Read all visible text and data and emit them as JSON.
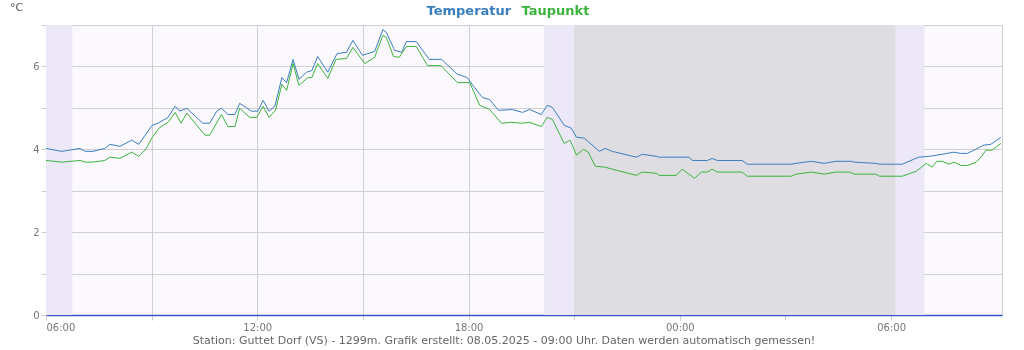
{
  "chart_data": {
    "type": "line",
    "ylabel": "°C",
    "xlim": [
      "2025-05-07T06:00",
      "2025-05-08T09:09"
    ],
    "ylim": [
      0,
      7
    ],
    "xticks": [
      {
        "value": "2025-05-07T06:00",
        "label": "06:00"
      },
      {
        "value": "2025-05-07T09:00",
        "label": null
      },
      {
        "value": "2025-05-07T12:00",
        "label": "12:00"
      },
      {
        "value": "2025-05-07T15:00",
        "label": null
      },
      {
        "value": "2025-05-07T18:00",
        "label": "18:00"
      },
      {
        "value": "2025-05-07T21:00",
        "label": null
      },
      {
        "value": "2025-05-08T00:00",
        "label": "00:00"
      },
      {
        "value": "2025-05-08T03:00",
        "label": null
      },
      {
        "value": "2025-05-08T06:00",
        "label": "06:00"
      }
    ],
    "yticks": [
      0,
      {
        "value": 1,
        "label": null
      },
      2,
      {
        "value": 3,
        "label": null
      },
      4,
      {
        "value": 5,
        "label": null
      },
      6,
      {
        "value": 7,
        "label": null
      }
    ],
    "grid": true,
    "legend": "top",
    "marker": "none",
    "line_style": "solid",
    "bands": [
      {
        "axis": "x",
        "from": "2025-05-07T06:00",
        "to": "2025-05-07T06:45",
        "label": null,
        "color": "#ece8f8"
      },
      {
        "axis": "x",
        "from": "2025-05-07T20:09",
        "to": "2025-05-07T21:00",
        "label": null,
        "color": "#ece8f8"
      },
      {
        "axis": "x",
        "from": "2025-05-07T21:00",
        "to": "2025-05-08T06:08",
        "label": null,
        "color": "#dedee2"
      },
      {
        "axis": "x",
        "from": "2025-05-08T06:08",
        "to": "2025-05-08T06:57",
        "label": null,
        "color": "#ece8f8"
      }
    ],
    "series": [
      {
        "name": "Temperatur",
        "color": "#3a7ebf",
        "x": [
          "2025-05-07T06:00",
          "2025-05-07T06:27",
          "2025-05-07T06:58",
          "2025-05-07T07:07",
          "2025-05-07T07:20",
          "2025-05-07T07:40",
          "2025-05-07T07:49",
          "2025-05-07T08:06",
          "2025-05-07T08:26",
          "2025-05-07T08:38",
          "2025-05-07T09:01",
          "2025-05-07T09:11",
          "2025-05-07T09:28",
          "2025-05-07T09:40",
          "2025-05-07T09:48",
          "2025-05-07T10:00",
          "2025-05-07T10:27",
          "2025-05-07T10:39",
          "2025-05-07T10:51",
          "2025-05-07T10:59",
          "2025-05-07T11:10",
          "2025-05-07T11:22",
          "2025-05-07T11:30",
          "2025-05-07T11:50",
          "2025-05-07T12:01",
          "2025-05-07T12:10",
          "2025-05-07T12:20",
          "2025-05-07T12:30",
          "2025-05-07T12:42",
          "2025-05-07T12:50",
          "2025-05-07T13:01",
          "2025-05-07T13:11",
          "2025-05-07T13:24",
          "2025-05-07T13:33",
          "2025-05-07T13:43",
          "2025-05-07T14:00",
          "2025-05-07T14:16",
          "2025-05-07T14:32",
          "2025-05-07T14:43",
          "2025-05-07T14:59",
          "2025-05-07T15:20",
          "2025-05-07T15:34",
          "2025-05-07T15:40",
          "2025-05-07T15:54",
          "2025-05-07T16:06",
          "2025-05-07T16:14",
          "2025-05-07T16:31",
          "2025-05-07T16:53",
          "2025-05-07T17:14",
          "2025-05-07T17:41",
          "2025-05-07T17:58",
          "2025-05-07T18:10",
          "2025-05-07T18:24",
          "2025-05-07T18:36",
          "2025-05-07T18:51",
          "2025-05-07T19:15",
          "2025-05-07T19:32",
          "2025-05-07T19:44",
          "2025-05-07T20:04",
          "2025-05-07T20:14",
          "2025-05-07T20:23",
          "2025-05-07T20:43",
          "2025-05-07T20:55",
          "2025-05-07T21:04",
          "2025-05-07T21:17",
          "2025-05-07T21:43",
          "2025-05-07T21:53",
          "2025-05-07T22:05",
          "2025-05-07T22:46",
          "2025-05-07T22:56",
          "2025-05-07T23:20",
          "2025-05-07T23:25",
          "2025-05-08T00:16",
          "2025-05-08T00:21",
          "2025-05-08T00:47",
          "2025-05-08T00:55",
          "2025-05-08T01:04",
          "2025-05-08T01:46",
          "2025-05-08T01:55",
          "2025-05-08T03:10",
          "2025-05-08T03:18",
          "2025-05-08T03:44",
          "2025-05-08T04:06",
          "2025-05-08T04:26",
          "2025-05-08T04:52",
          "2025-05-08T04:57",
          "2025-05-08T05:34",
          "2025-05-08T05:40",
          "2025-05-08T06:19",
          "2025-05-08T06:47",
          "2025-05-08T07:05",
          "2025-05-08T07:27",
          "2025-05-08T07:47",
          "2025-05-08T07:59",
          "2025-05-08T08:10",
          "2025-05-08T08:38",
          "2025-05-08T08:50",
          "2025-05-08T09:07"
        ],
        "values": [
          4.02,
          3.95,
          4.02,
          3.95,
          3.95,
          4.02,
          4.12,
          4.07,
          4.22,
          4.12,
          4.58,
          4.63,
          4.77,
          5.04,
          4.92,
          4.99,
          4.63,
          4.63,
          4.92,
          4.99,
          4.84,
          4.84,
          5.11,
          4.92,
          4.92,
          5.18,
          4.92,
          5.04,
          5.73,
          5.61,
          6.17,
          5.69,
          5.86,
          5.9,
          6.24,
          5.86,
          6.31,
          6.34,
          6.63,
          6.27,
          6.36,
          6.89,
          6.82,
          6.39,
          6.34,
          6.6,
          6.6,
          6.17,
          6.17,
          5.81,
          5.73,
          5.49,
          5.25,
          5.2,
          4.94,
          4.96,
          4.89,
          4.96,
          4.84,
          5.06,
          5.01,
          4.58,
          4.51,
          4.29,
          4.27,
          3.95,
          4.02,
          3.95,
          3.81,
          3.88,
          3.83,
          3.81,
          3.81,
          3.73,
          3.73,
          3.78,
          3.73,
          3.73,
          3.64,
          3.64,
          3.66,
          3.71,
          3.66,
          3.71,
          3.71,
          3.69,
          3.66,
          3.64,
          3.64,
          3.81,
          3.83,
          3.88,
          3.93,
          3.9,
          3.9,
          4.1,
          4.12,
          4.29
        ]
      },
      {
        "name": "Taupunkt",
        "color": "#3cb43c",
        "x": [
          "2025-05-07T06:00",
          "2025-05-07T06:27",
          "2025-05-07T06:58",
          "2025-05-07T07:07",
          "2025-05-07T07:20",
          "2025-05-07T07:40",
          "2025-05-07T07:49",
          "2025-05-07T08:06",
          "2025-05-07T08:26",
          "2025-05-07T08:38",
          "2025-05-07T08:50",
          "2025-05-07T09:01",
          "2025-05-07T09:14",
          "2025-05-07T09:28",
          "2025-05-07T09:40",
          "2025-05-07T09:50",
          "2025-05-07T10:00",
          "2025-05-07T10:14",
          "2025-05-07T10:31",
          "2025-05-07T10:39",
          "2025-05-07T10:59",
          "2025-05-07T11:10",
          "2025-05-07T11:22",
          "2025-05-07T11:30",
          "2025-05-07T11:47",
          "2025-05-07T11:59",
          "2025-05-07T12:10",
          "2025-05-07T12:20",
          "2025-05-07T12:31",
          "2025-05-07T12:42",
          "2025-05-07T12:50",
          "2025-05-07T13:01",
          "2025-05-07T13:11",
          "2025-05-07T13:26",
          "2025-05-07T13:33",
          "2025-05-07T13:43",
          "2025-05-07T14:00",
          "2025-05-07T14:14",
          "2025-05-07T14:32",
          "2025-05-07T14:43",
          "2025-05-07T15:03",
          "2025-05-07T15:20",
          "2025-05-07T15:34",
          "2025-05-07T15:40",
          "2025-05-07T15:52",
          "2025-05-07T16:02",
          "2025-05-07T16:14",
          "2025-05-07T16:31",
          "2025-05-07T16:50",
          "2025-05-07T17:13",
          "2025-05-07T17:41",
          "2025-05-07T18:02",
          "2025-05-07T18:19",
          "2025-05-07T18:36",
          "2025-05-07T18:56",
          "2025-05-07T19:13",
          "2025-05-07T19:32",
          "2025-05-07T19:44",
          "2025-05-07T20:04",
          "2025-05-07T20:14",
          "2025-05-07T20:23",
          "2025-05-07T20:43",
          "2025-05-07T20:53",
          "2025-05-07T21:04",
          "2025-05-07T21:16",
          "2025-05-07T21:24",
          "2025-05-07T21:36",
          "2025-05-07T21:52",
          "2025-05-07T22:05",
          "2025-05-07T22:46",
          "2025-05-07T22:56",
          "2025-05-07T23:20",
          "2025-05-07T23:25",
          "2025-05-07T23:54",
          "2025-05-08T00:04",
          "2025-05-08T00:25",
          "2025-05-08T00:37",
          "2025-05-08T00:47",
          "2025-05-08T00:55",
          "2025-05-08T01:04",
          "2025-05-08T01:46",
          "2025-05-08T01:55",
          "2025-05-08T03:10",
          "2025-05-08T03:18",
          "2025-05-08T03:44",
          "2025-05-08T04:06",
          "2025-05-08T04:26",
          "2025-05-08T04:49",
          "2025-05-08T04:57",
          "2025-05-08T05:34",
          "2025-05-08T05:40",
          "2025-05-08T06:19",
          "2025-05-08T06:43",
          "2025-05-08T07:00",
          "2025-05-08T07:10",
          "2025-05-08T07:18",
          "2025-05-08T07:27",
          "2025-05-08T07:39",
          "2025-05-08T07:47",
          "2025-05-08T07:59",
          "2025-05-08T08:10",
          "2025-05-08T08:25",
          "2025-05-08T08:33",
          "2025-05-08T08:42",
          "2025-05-08T08:52",
          "2025-05-08T09:07"
        ],
        "values": [
          3.73,
          3.69,
          3.73,
          3.69,
          3.69,
          3.73,
          3.81,
          3.78,
          3.93,
          3.83,
          4.0,
          4.29,
          4.53,
          4.65,
          4.89,
          4.63,
          4.87,
          4.63,
          4.34,
          4.34,
          4.84,
          4.55,
          4.55,
          4.99,
          4.77,
          4.77,
          5.04,
          4.77,
          4.94,
          5.57,
          5.42,
          6.07,
          5.54,
          5.73,
          5.73,
          6.07,
          5.71,
          6.17,
          6.19,
          6.46,
          6.07,
          6.22,
          6.75,
          6.7,
          6.24,
          6.22,
          6.48,
          6.48,
          6.02,
          6.02,
          5.61,
          5.61,
          5.06,
          4.96,
          4.63,
          4.65,
          4.63,
          4.65,
          4.55,
          4.77,
          4.72,
          4.14,
          4.22,
          3.86,
          4.0,
          3.93,
          3.59,
          3.57,
          3.52,
          3.37,
          3.45,
          3.42,
          3.37,
          3.37,
          3.52,
          3.3,
          3.45,
          3.45,
          3.52,
          3.45,
          3.45,
          3.35,
          3.35,
          3.4,
          3.45,
          3.4,
          3.45,
          3.45,
          3.4,
          3.4,
          3.35,
          3.35,
          3.47,
          3.66,
          3.57,
          3.71,
          3.71,
          3.64,
          3.69,
          3.61,
          3.61,
          3.69,
          3.81,
          3.98,
          3.98,
          4.14
        ]
      }
    ],
    "annotations": [
      "Station: Guttet Dorf (VS) - 1299m. Grafik erstellt: 08.05.2025 - 09:00 Uhr. Daten werden automatisch gemessen!"
    ]
  }
}
